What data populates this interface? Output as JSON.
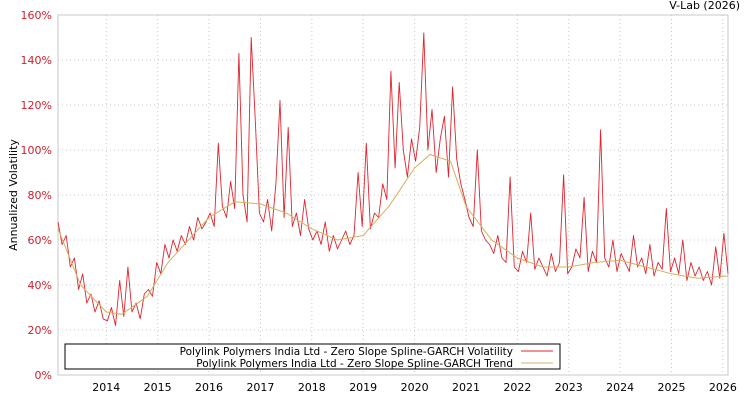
{
  "credit": "V-Lab (2026)",
  "chart_data": {
    "type": "line",
    "title": "",
    "xlabel": "",
    "ylabel": "Annualized Volatility",
    "xlim": [
      2013.06,
      2026.1
    ],
    "ylim": [
      0,
      160
    ],
    "grid": true,
    "legend_placement": "bottom-left",
    "x_ticks": [
      "2014",
      "2015",
      "2016",
      "2017",
      "2018",
      "2019",
      "2020",
      "2021",
      "2022",
      "2023",
      "2024",
      "2025",
      "2026"
    ],
    "y_ticks": [
      "0%",
      "20%",
      "40%",
      "60%",
      "80%",
      "100%",
      "120%",
      "140%",
      "160%"
    ],
    "colors": {
      "volatility": "#e0242e",
      "trend": "#d4b060",
      "tick_label": "#d0202e"
    },
    "series": [
      {
        "name": "Polylink Polymers India Ltd - Zero Slope Spline-GARCH Volatility",
        "x_start": 2013.06,
        "x_step": 0.08,
        "values": [
          68,
          58,
          62,
          48,
          52,
          38,
          45,
          32,
          36,
          28,
          33,
          25,
          24,
          30,
          22,
          42,
          26,
          48,
          28,
          32,
          25,
          36,
          38,
          35,
          50,
          45,
          58,
          52,
          60,
          55,
          62,
          58,
          66,
          60,
          70,
          65,
          68,
          72,
          66,
          103,
          75,
          70,
          86,
          74,
          143,
          80,
          68,
          150,
          113,
          72,
          68,
          78,
          64,
          85,
          122,
          70,
          110,
          66,
          72,
          62,
          78,
          65,
          60,
          64,
          58,
          68,
          55,
          62,
          56,
          60,
          64,
          58,
          62,
          90,
          66,
          103,
          65,
          72,
          70,
          85,
          78,
          135,
          92,
          130,
          100,
          88,
          105,
          95,
          110,
          152,
          100,
          118,
          90,
          105,
          115,
          88,
          128,
          96,
          85,
          78,
          70,
          66,
          100,
          64,
          60,
          58,
          54,
          62,
          52,
          50,
          88,
          48,
          46,
          55,
          50,
          72,
          47,
          52,
          48,
          44,
          54,
          46,
          50,
          89,
          45,
          48,
          56,
          52,
          79,
          46,
          55,
          50,
          109,
          52,
          48,
          60,
          46,
          54,
          50,
          46,
          62,
          48,
          52,
          45,
          58,
          44,
          50,
          47,
          74,
          46,
          52,
          45,
          60,
          42,
          50,
          44,
          48,
          42,
          46,
          40,
          57,
          43,
          63,
          45
        ]
      },
      {
        "name": "Polylink Polymers India Ltd - Zero Slope Spline-GARCH Trend",
        "points": [
          [
            2013.06,
            65
          ],
          [
            2013.5,
            40
          ],
          [
            2014.0,
            28
          ],
          [
            2014.3,
            27
          ],
          [
            2014.8,
            35
          ],
          [
            2015.2,
            50
          ],
          [
            2015.6,
            60
          ],
          [
            2016.0,
            70
          ],
          [
            2016.5,
            77
          ],
          [
            2017.0,
            76
          ],
          [
            2017.5,
            72
          ],
          [
            2018.0,
            65
          ],
          [
            2018.5,
            60
          ],
          [
            2019.0,
            62
          ],
          [
            2019.5,
            75
          ],
          [
            2020.0,
            92
          ],
          [
            2020.3,
            98
          ],
          [
            2020.7,
            95
          ],
          [
            2021.0,
            75
          ],
          [
            2021.5,
            60
          ],
          [
            2022.0,
            52
          ],
          [
            2022.5,
            48
          ],
          [
            2023.0,
            48
          ],
          [
            2023.5,
            50
          ],
          [
            2024.0,
            51
          ],
          [
            2024.5,
            48
          ],
          [
            2025.0,
            45
          ],
          [
            2025.5,
            43
          ],
          [
            2026.1,
            44
          ]
        ]
      }
    ]
  }
}
